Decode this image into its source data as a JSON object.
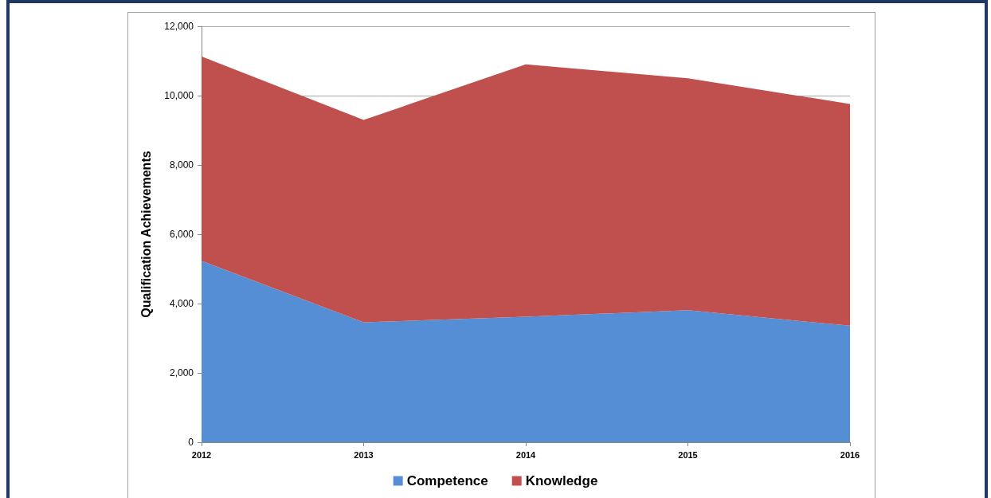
{
  "chart_data": {
    "type": "area",
    "stacked": true,
    "ylabel": "Qualification Achievements",
    "categories": [
      "2012",
      "2013",
      "2014",
      "2015",
      "2016"
    ],
    "series": [
      {
        "name": "Competence",
        "color": "#558ed5",
        "values": [
          5230,
          3460,
          3620,
          3810,
          3360
        ]
      },
      {
        "name": "Knowledge",
        "color": "#c0504d",
        "values": [
          5900,
          5840,
          7280,
          6690,
          6400
        ]
      }
    ],
    "ylim": [
      0,
      12000
    ],
    "yticks": [
      0,
      {
        "value": 2000,
        "label": "2,000"
      },
      {
        "value": 4000,
        "label": "4,000"
      },
      {
        "value": 6000,
        "label": "6,000"
      },
      {
        "value": 8000,
        "label": "8,000"
      },
      {
        "value": 10000,
        "label": "10,000"
      },
      {
        "value": 12000,
        "label": "12,000"
      }
    ],
    "grid": "y",
    "legend": "bottom"
  }
}
